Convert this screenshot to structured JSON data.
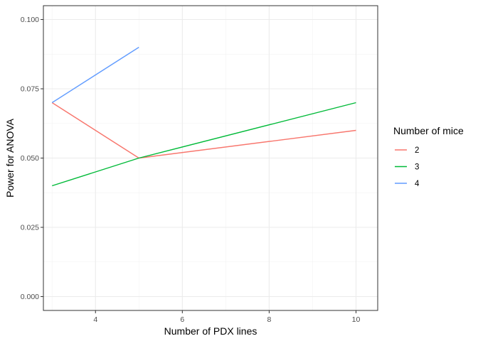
{
  "chart_data": {
    "type": "line",
    "xlabel": "Number of PDX lines",
    "ylabel": "Power for ANOVA",
    "xlim": [
      2.8,
      10.5
    ],
    "ylim": [
      -0.005,
      0.105
    ],
    "x_ticks": [
      4,
      6,
      8,
      10
    ],
    "x_tick_labels": [
      "4",
      "6",
      "8",
      "10"
    ],
    "y_ticks": [
      0.0,
      0.025,
      0.05,
      0.075,
      0.1
    ],
    "y_tick_labels": [
      "0.000",
      "0.025",
      "0.050",
      "0.075",
      "0.100"
    ],
    "grid": true,
    "legend": {
      "title": "Number of mice",
      "position": "right"
    },
    "series": [
      {
        "name": "2",
        "color": "#F8766D",
        "x": [
          3,
          5,
          10
        ],
        "y": [
          0.07,
          0.05,
          0.06
        ]
      },
      {
        "name": "3",
        "color": "#00BA38",
        "x": [
          3,
          5,
          10
        ],
        "y": [
          0.04,
          0.05,
          0.07
        ]
      },
      {
        "name": "4",
        "color": "#619CFF",
        "x": [
          3,
          5
        ],
        "y": [
          0.07,
          0.09
        ]
      }
    ]
  }
}
